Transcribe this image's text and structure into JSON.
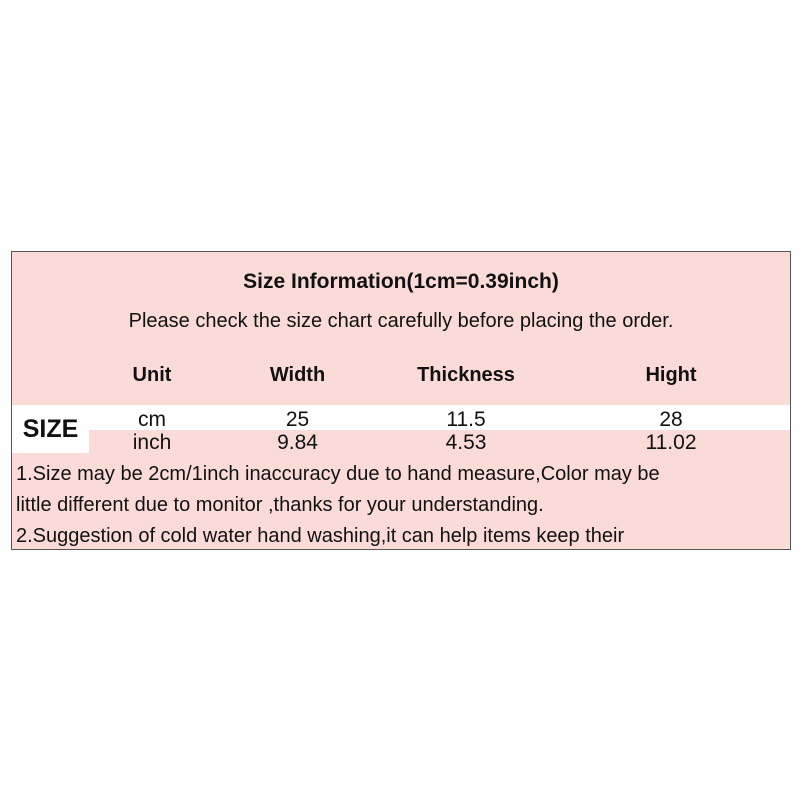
{
  "title": "Size Information(1cm=0.39inch)",
  "subtitle": "Please check the size chart carefully before placing the order.",
  "table": {
    "row_label": "SIZE",
    "headers": [
      "Unit",
      "Width",
      "Thickness",
      "Hight"
    ],
    "rows": [
      [
        "cm",
        "25",
        "11.5",
        "28"
      ],
      [
        "inch",
        "9.84",
        "4.53",
        "11.02"
      ]
    ]
  },
  "notes": [
    "1.Size may be 2cm/1inch inaccuracy due to hand measure,Color may be",
    "little different due to monitor ,thanks for your understanding.",
    "2.Suggestion of cold water hand washing,it can help items keep their"
  ],
  "colors": {
    "background": "#fadbd8",
    "border": "#555555"
  }
}
